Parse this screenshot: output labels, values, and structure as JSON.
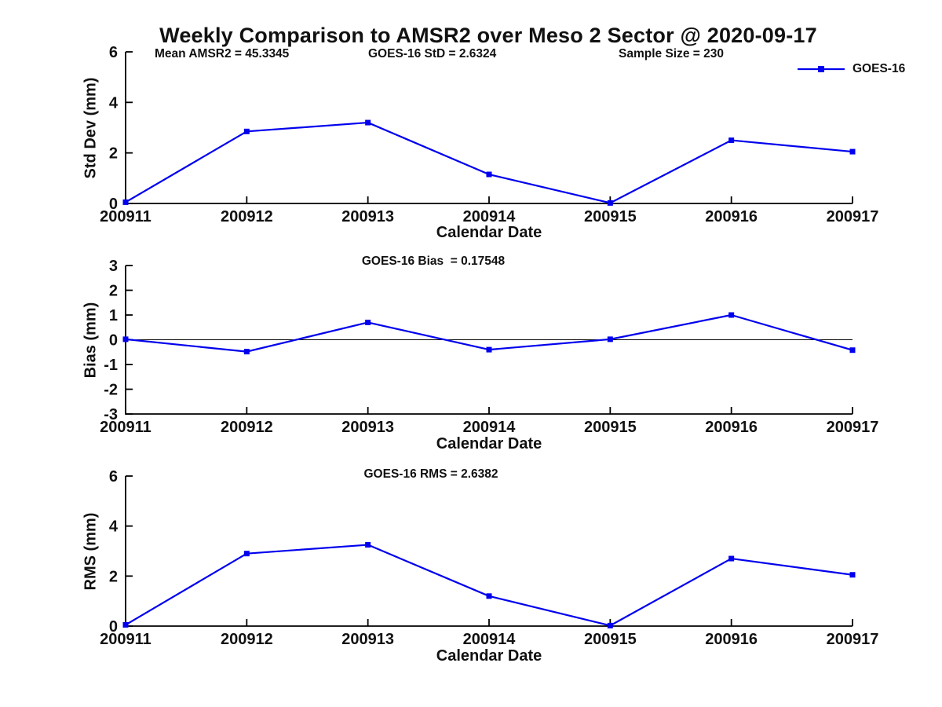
{
  "figure": {
    "title": "Weekly Comparison to AMSR2 over Meso 2 Sector @ 2020-09-17",
    "background": "#ffffff"
  },
  "colors": {
    "series": "#0000ee",
    "axis": "#000000",
    "zero_line": "#000000",
    "text": "#111111"
  },
  "legend": {
    "label": "GOES-16",
    "marker": "filled-square",
    "position": "top-right"
  },
  "annotations": {
    "mean_amsr2": "Mean AMSR2 = 45.3345",
    "goes_std": "GOES-16 StD = 2.6324",
    "sample_size": "Sample Size = 230"
  },
  "chart_data": [
    {
      "type": "line",
      "name": "std-dev-vs-date",
      "series_name": "GOES-16",
      "title": "",
      "x": [
        "200911",
        "200912",
        "200913",
        "200914",
        "200915",
        "200916",
        "200917"
      ],
      "values": [
        0.05,
        2.85,
        3.2,
        1.15,
        0.02,
        2.5,
        2.05
      ],
      "xlabel": "Calendar Date",
      "ylabel": "Std Dev (mm)",
      "ylim": [
        0,
        6
      ],
      "yticks": [
        0,
        2,
        4,
        6
      ],
      "zero_line": false,
      "grid": false
    },
    {
      "type": "line",
      "name": "bias-vs-date",
      "series_name": "GOES-16",
      "title": "GOES-16 Bias  = 0.17548",
      "x": [
        "200911",
        "200912",
        "200913",
        "200914",
        "200915",
        "200916",
        "200917"
      ],
      "values": [
        0.02,
        -0.48,
        0.7,
        -0.4,
        0.02,
        1.0,
        -0.42
      ],
      "xlabel": "Calendar Date",
      "ylabel": "Bias (mm)",
      "ylim": [
        -3,
        3
      ],
      "yticks": [
        3,
        2,
        1,
        0,
        -1,
        -2,
        -3
      ],
      "zero_line": true,
      "grid": false
    },
    {
      "type": "line",
      "name": "rms-vs-date",
      "series_name": "GOES-16",
      "title": "GOES-16 RMS = 2.6382",
      "x": [
        "200911",
        "200912",
        "200913",
        "200914",
        "200915",
        "200916",
        "200917"
      ],
      "values": [
        0.05,
        2.9,
        3.25,
        1.2,
        0.02,
        2.7,
        2.05
      ],
      "xlabel": "Calendar Date",
      "ylabel": "RMS (mm)",
      "ylim": [
        0,
        6
      ],
      "yticks": [
        0,
        2,
        4,
        6
      ],
      "zero_line": false,
      "grid": false
    }
  ]
}
